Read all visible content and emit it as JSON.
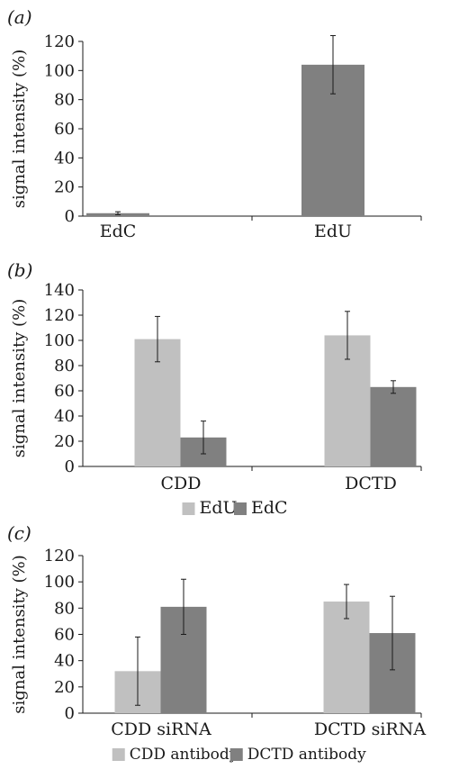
{
  "colors": {
    "light": "#c0c0c0",
    "dark": "#808080",
    "axis": "#1a1a1a"
  },
  "chart_data": [
    {
      "type": "bar",
      "panel_label": "(a)",
      "categories": [
        "EdC",
        "EdU"
      ],
      "series": [
        {
          "name": "",
          "color": "#808080",
          "values": [
            2,
            104
          ],
          "errors": [
            1,
            20
          ]
        }
      ],
      "ylabel": "signal intensity (%)",
      "ylim": [
        0,
        120
      ],
      "yticks": [
        "0",
        "20",
        "40",
        "60",
        "80",
        "100",
        "120"
      ],
      "legend": []
    },
    {
      "type": "bar",
      "panel_label": "(b)",
      "categories": [
        "CDD",
        "DCTD"
      ],
      "series": [
        {
          "name": "EdU",
          "color": "#c0c0c0",
          "values": [
            101,
            104
          ],
          "errors": [
            18,
            19
          ]
        },
        {
          "name": "EdC",
          "color": "#808080",
          "values": [
            23,
            63
          ],
          "errors": [
            13,
            5
          ]
        }
      ],
      "ylabel": "signal intensity (%)",
      "ylim": [
        0,
        140
      ],
      "yticks": [
        "0",
        "20",
        "40",
        "60",
        "80",
        "100",
        "120",
        "140"
      ],
      "legend": [
        "EdU",
        "EdC"
      ]
    },
    {
      "type": "bar",
      "panel_label": "(c)",
      "categories": [
        "CDD siRNA",
        "DCTD siRNA"
      ],
      "series": [
        {
          "name": "CDD antibody",
          "color": "#c0c0c0",
          "values": [
            32,
            85
          ],
          "errors": [
            26,
            13
          ]
        },
        {
          "name": "DCTD antibody",
          "color": "#808080",
          "values": [
            81,
            61
          ],
          "errors": [
            21,
            28
          ]
        }
      ],
      "ylabel": "signal intensity (%)",
      "ylim": [
        0,
        120
      ],
      "yticks": [
        "0",
        "20",
        "40",
        "60",
        "80",
        "100",
        "120"
      ],
      "legend": [
        "CDD antibody",
        "DCTD antibody"
      ]
    }
  ]
}
